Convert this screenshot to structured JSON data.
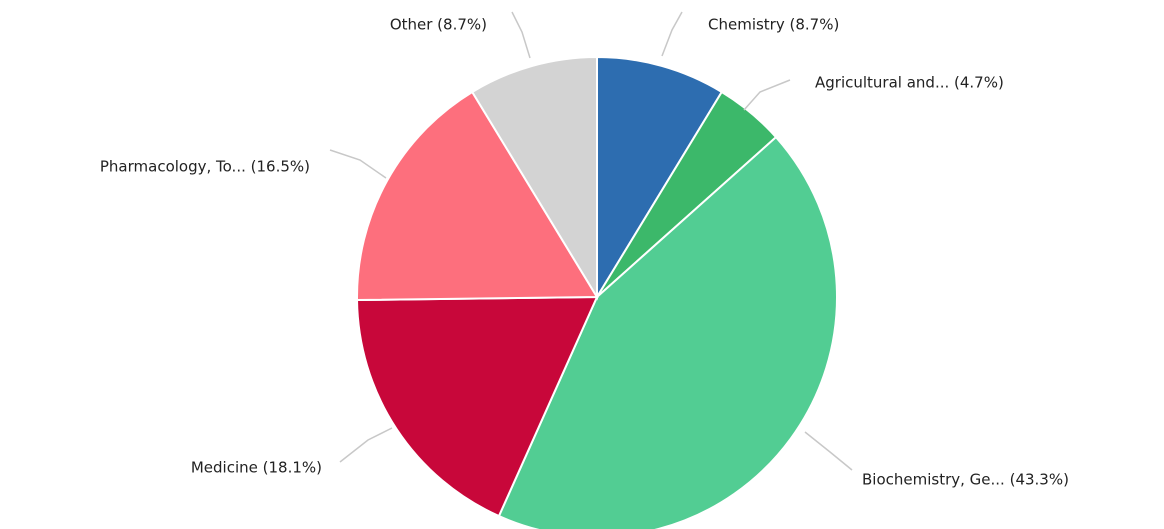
{
  "chart_data": {
    "type": "pie",
    "categories": [
      "Chemistry (8.7%)",
      "Agricultural and... (4.7%)",
      "Biochemistry, Ge... (43.3%)",
      "Medicine (18.1%)",
      "Pharmacology, To... (16.5%)",
      "Other (8.7%)"
    ],
    "values": [
      8.7,
      4.7,
      43.3,
      18.1,
      16.5,
      8.7
    ],
    "colors": [
      "#2d6db0",
      "#3cb86a",
      "#52cd93",
      "#c8073a",
      "#fd6f7d",
      "#d3d3d3"
    ]
  }
}
